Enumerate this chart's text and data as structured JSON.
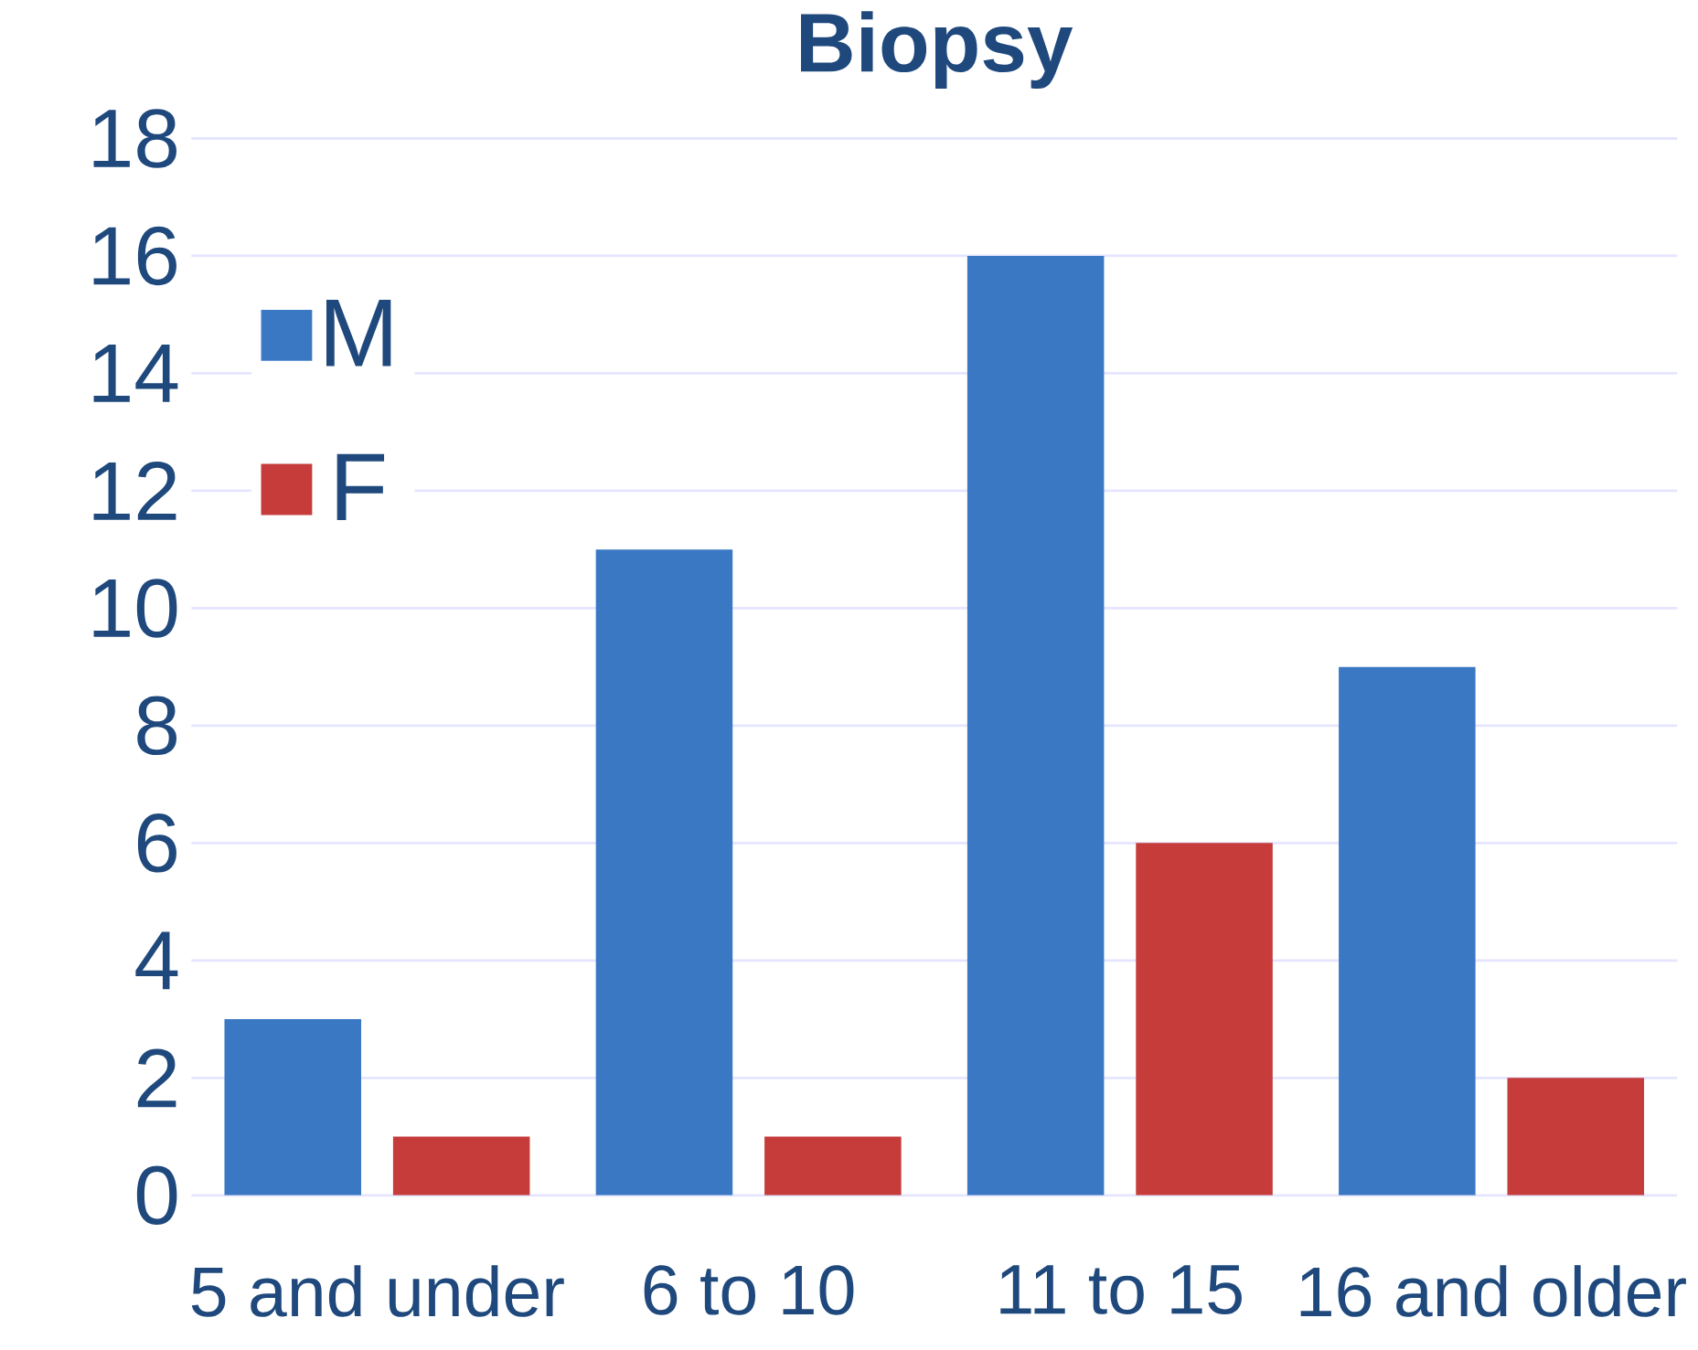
{
  "chart_data": {
    "type": "bar",
    "title": "Biopsy",
    "categories": [
      "5 and under",
      "6 to 10",
      "11 to 15",
      "16 and older"
    ],
    "series": [
      {
        "name": "M",
        "color": "#3a78c4",
        "values": [
          3,
          11,
          16,
          9
        ]
      },
      {
        "name": "F",
        "color": "#c63c3a",
        "values": [
          1,
          1,
          6,
          2
        ]
      }
    ],
    "ylim": [
      0,
      18
    ],
    "yticks": [
      0,
      2,
      4,
      6,
      8,
      10,
      12,
      14,
      16,
      18
    ],
    "grid": "y",
    "legend": "top left"
  }
}
